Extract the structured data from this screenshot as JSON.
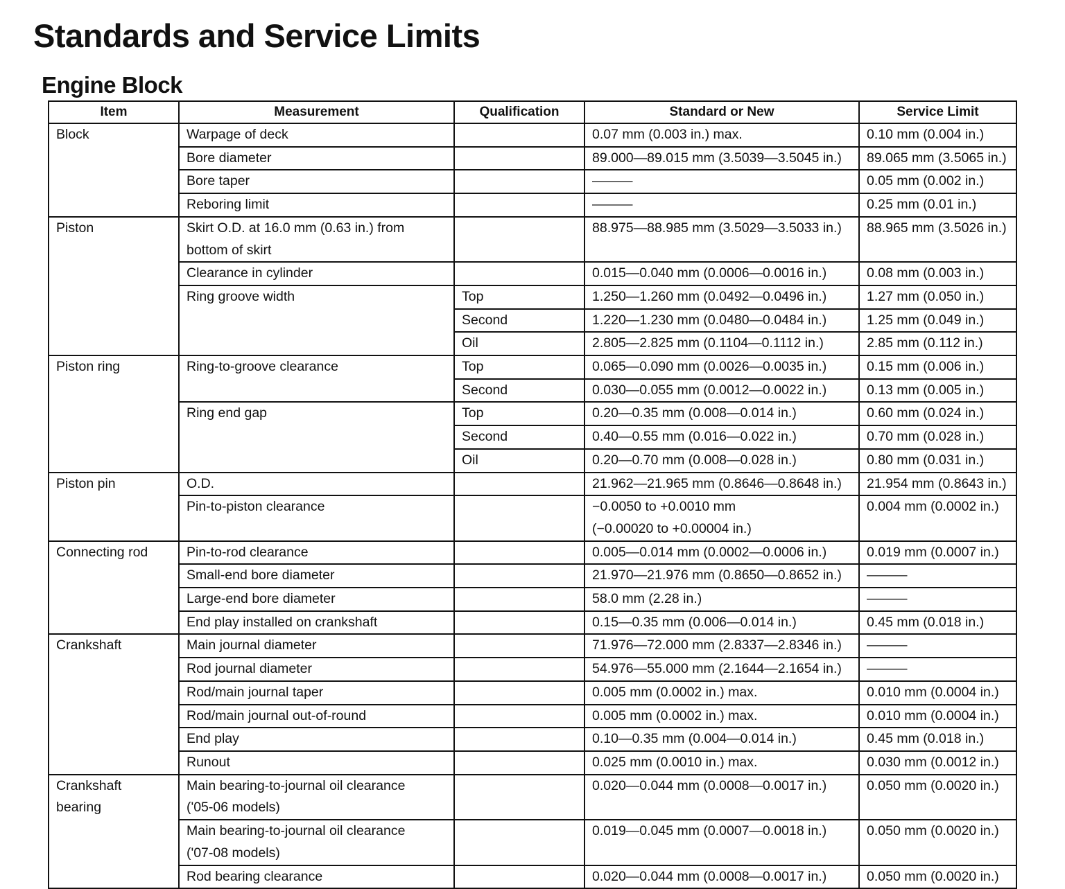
{
  "title": "Standards and Service Limits",
  "section": "Engine Block",
  "columns": [
    "Item",
    "Measurement",
    "Qualification",
    "Standard or New",
    "Service Limit"
  ],
  "groups": [
    {
      "item": "Block",
      "measurements": [
        {
          "label": "Warpage of deck",
          "quals": [
            {
              "q": "",
              "std": "0.07 mm (0.003 in.) max.",
              "limit": "0.10 mm (0.004 in.)"
            }
          ]
        },
        {
          "label": "Bore diameter",
          "quals": [
            {
              "q": "",
              "std": "89.000—89.015 mm (3.5039—3.5045 in.)",
              "limit": "89.065 mm (3.5065 in.)"
            }
          ]
        },
        {
          "label": "Bore taper",
          "quals": [
            {
              "q": "",
              "std": "———",
              "limit": "0.05 mm (0.002 in.)"
            }
          ]
        },
        {
          "label": "Reboring limit",
          "quals": [
            {
              "q": "",
              "std": "———",
              "limit": "0.25 mm (0.01 in.)"
            }
          ]
        }
      ]
    },
    {
      "item": "Piston",
      "measurements": [
        {
          "label": "Skirt O.D. at 16.0 mm (0.63 in.) from\nbottom of skirt",
          "quals": [
            {
              "q": "",
              "std": "88.975—88.985 mm (3.5029—3.5033 in.)",
              "limit": "88.965 mm (3.5026 in.)",
              "tall": true
            }
          ]
        },
        {
          "label": "Clearance in cylinder",
          "quals": [
            {
              "q": "",
              "std": "0.015—0.040 mm (0.0006—0.0016 in.)",
              "limit": "0.08 mm (0.003 in.)"
            }
          ]
        },
        {
          "label": "Ring groove width",
          "quals": [
            {
              "q": "Top",
              "std": "1.250—1.260 mm (0.0492—0.0496 in.)",
              "limit": "1.27 mm (0.050 in.)"
            },
            {
              "q": "Second",
              "std": "1.220—1.230 mm (0.0480—0.0484 in.)",
              "limit": "1.25 mm (0.049 in.)"
            },
            {
              "q": "Oil",
              "std": "2.805—2.825 mm (0.1104—0.1112 in.)",
              "limit": "2.85 mm (0.112 in.)"
            }
          ]
        }
      ]
    },
    {
      "item": "Piston ring",
      "measurements": [
        {
          "label": "Ring-to-groove clearance",
          "quals": [
            {
              "q": "Top",
              "std": "0.065—0.090 mm (0.0026—0.0035 in.)",
              "limit": "0.15 mm (0.006 in.)"
            },
            {
              "q": "Second",
              "std": "0.030—0.055 mm (0.0012—0.0022 in.)",
              "limit": "0.13 mm (0.005 in.)"
            }
          ]
        },
        {
          "label": "Ring end gap",
          "quals": [
            {
              "q": "Top",
              "std": "0.20—0.35 mm (0.008—0.014 in.)",
              "limit": "0.60 mm (0.024 in.)"
            },
            {
              "q": "Second",
              "std": "0.40—0.55 mm (0.016—0.022 in.)",
              "limit": "0.70 mm (0.028 in.)"
            },
            {
              "q": "Oil",
              "std": "0.20—0.70 mm (0.008—0.028 in.)",
              "limit": "0.80 mm (0.031 in.)"
            }
          ]
        }
      ]
    },
    {
      "item": "Piston pin",
      "measurements": [
        {
          "label": "O.D.",
          "quals": [
            {
              "q": "",
              "std": "21.962—21.965 mm (0.8646—0.8648 in.)",
              "limit": "21.954 mm (0.8643 in.)"
            }
          ]
        },
        {
          "label": "Pin-to-piston clearance",
          "quals": [
            {
              "q": "",
              "std": "−0.0050 to +0.0010 mm\n(−0.00020 to +0.00004 in.)",
              "limit": "0.004 mm (0.0002 in.)",
              "tall": true
            }
          ]
        }
      ]
    },
    {
      "item": "Connecting rod",
      "measurements": [
        {
          "label": "Pin-to-rod clearance",
          "quals": [
            {
              "q": "",
              "std": "0.005—0.014 mm (0.0002—0.0006 in.)",
              "limit": "0.019 mm (0.0007 in.)"
            }
          ]
        },
        {
          "label": "Small-end bore diameter",
          "quals": [
            {
              "q": "",
              "std": "21.970—21.976 mm (0.8650—0.8652 in.)",
              "limit": "———"
            }
          ]
        },
        {
          "label": "Large-end bore diameter",
          "quals": [
            {
              "q": "",
              "std": "58.0 mm (2.28 in.)",
              "limit": "———"
            }
          ]
        },
        {
          "label": "End play installed on crankshaft",
          "quals": [
            {
              "q": "",
              "std": "0.15—0.35 mm (0.006—0.014 in.)",
              "limit": "0.45 mm (0.018 in.)"
            }
          ]
        }
      ]
    },
    {
      "item": "Crankshaft",
      "measurements": [
        {
          "label": "Main journal diameter",
          "quals": [
            {
              "q": "",
              "std": "71.976—72.000 mm (2.8337—2.8346 in.)",
              "limit": "———"
            }
          ]
        },
        {
          "label": "Rod journal diameter",
          "quals": [
            {
              "q": "",
              "std": "54.976—55.000 mm (2.1644—2.1654 in.)",
              "limit": "———"
            }
          ]
        },
        {
          "label": "Rod/main journal taper",
          "quals": [
            {
              "q": "",
              "std": "0.005 mm (0.0002 in.) max.",
              "limit": "0.010 mm (0.0004 in.)"
            }
          ]
        },
        {
          "label": "Rod/main journal out-of-round",
          "quals": [
            {
              "q": "",
              "std": "0.005 mm (0.0002 in.) max.",
              "limit": "0.010 mm (0.0004 in.)"
            }
          ]
        },
        {
          "label": "End play",
          "quals": [
            {
              "q": "",
              "std": "0.10—0.35 mm (0.004—0.014 in.)",
              "limit": "0.45 mm (0.018 in.)"
            }
          ]
        },
        {
          "label": "Runout",
          "quals": [
            {
              "q": "",
              "std": "0.025 mm (0.0010 in.) max.",
              "limit": "0.030 mm (0.0012 in.)"
            }
          ]
        }
      ]
    },
    {
      "item": "Crankshaft\nbearing",
      "measurements": [
        {
          "label": "Main bearing-to-journal oil clearance\n('05-06 models)",
          "quals": [
            {
              "q": "",
              "std": "0.020—0.044 mm (0.0008—0.0017 in.)",
              "limit": "0.050 mm (0.0020 in.)",
              "tall": true
            }
          ]
        },
        {
          "label": "Main bearing-to-journal oil clearance\n('07-08 models)",
          "quals": [
            {
              "q": "",
              "std": "0.019—0.045 mm (0.0007—0.0018 in.)",
              "limit": "0.050 mm (0.0020 in.)",
              "tall": true
            }
          ]
        },
        {
          "label": "Rod bearing clearance",
          "quals": [
            {
              "q": "",
              "std": "0.020—0.044 mm (0.0008—0.0017 in.)",
              "limit": "0.050 mm (0.0020 in.)"
            }
          ]
        }
      ]
    }
  ]
}
